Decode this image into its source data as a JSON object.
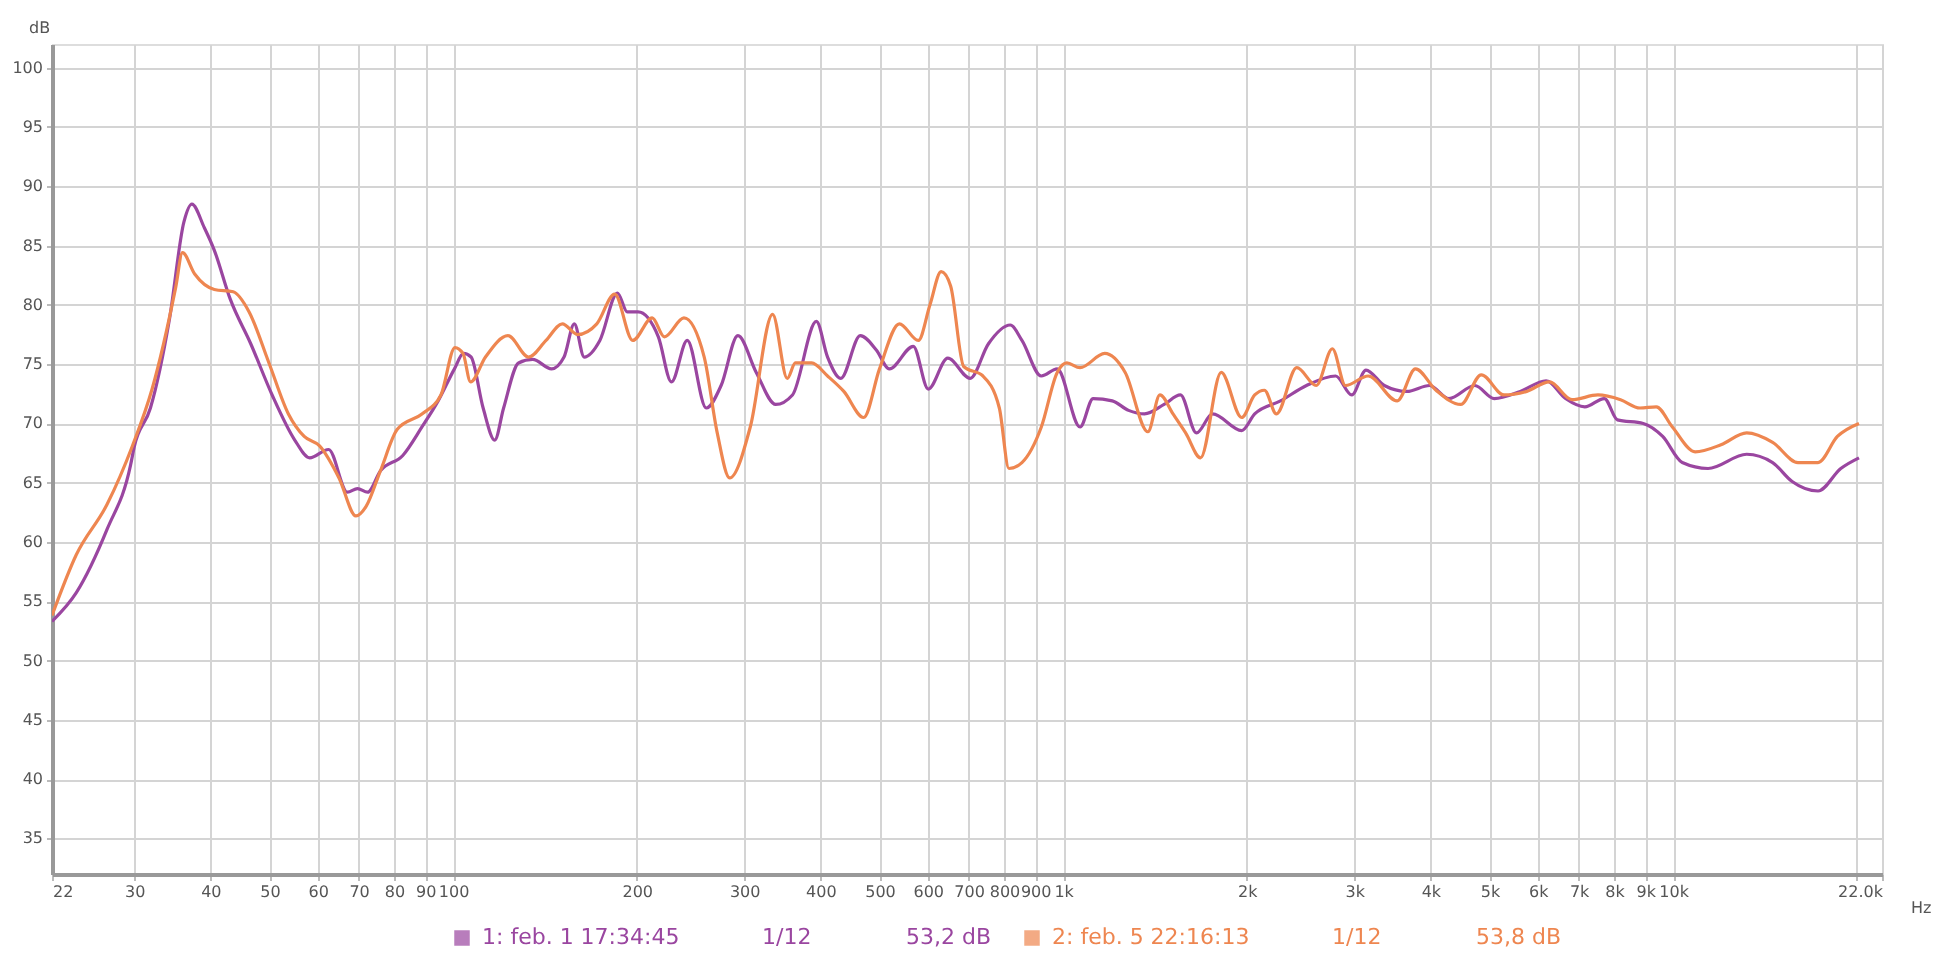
{
  "chart_data": {
    "type": "line",
    "ylabel": "dB",
    "xlabel": "Hz",
    "log": "x",
    "xlim": [
      22,
      22000
    ],
    "ylim": [
      32,
      102
    ],
    "xticks": [
      22,
      30,
      40,
      50,
      60,
      70,
      80,
      90,
      100,
      200,
      300,
      400,
      500,
      600,
      700,
      800,
      900,
      {
        "value": 1000,
        "label": "1k"
      },
      {
        "value": 2000,
        "label": "2k"
      },
      {
        "value": 3000,
        "label": "3k"
      },
      {
        "value": 4000,
        "label": "4k"
      },
      {
        "value": 5000,
        "label": "5k"
      },
      {
        "value": 6000,
        "label": "6k"
      },
      {
        "value": 7000,
        "label": "7k"
      },
      {
        "value": 8000,
        "label": "8k"
      },
      {
        "value": 9000,
        "label": "9k"
      },
      {
        "value": 10000,
        "label": "10k"
      },
      {
        "value": 20000,
        "label": null
      },
      {
        "value": 22000,
        "label": "22.0k"
      }
    ],
    "yticks": [
      35,
      40,
      45,
      50,
      55,
      60,
      65,
      70,
      75,
      80,
      85,
      90,
      95,
      100
    ],
    "grid": true,
    "legend": "bottom",
    "annotations": [
      "1/12",
      "53,2 dB",
      "1/12",
      "53,8 dB"
    ],
    "series": [
      {
        "name": "1: feb. 1 17:34:45",
        "color": "#9a46a0",
        "x": [
          22,
          24.1,
          27.1,
          29.6,
          30,
          31.9,
          34.3,
          36.2,
          37.3,
          39.1,
          40.6,
          43.1,
          46.6,
          50.5,
          55,
          58.2,
          62.5,
          67.1,
          69.7,
          72.4,
          76,
          82.7,
          88.9,
          94.5,
          100.5,
          104,
          107,
          112,
          117,
          121,
          128,
          135,
          145,
          152,
          158,
          164,
          174,
          186,
          193,
          201,
          217,
          228,
          242,
          260,
          275,
          293,
          314,
          338,
          360,
          394,
          411,
          432,
          465,
          494,
          519,
          568,
          601,
          647,
          704,
          754,
          819,
          856,
          921,
          978,
          1066,
          1120,
          1204,
          1280,
          1360,
          1464,
          1557,
          1654,
          1758,
          1962,
          2061,
          2272,
          2506,
          2798,
          2973,
          3137,
          3361,
          3660,
          3988,
          4291,
          4731,
          5091,
          5616,
          6192,
          6661,
          7165,
          7713,
          8103,
          8933,
          9614,
          10350,
          11410,
          13200,
          14560,
          15670,
          17280,
          18830,
          20170
        ],
        "values": [
          53.3,
          55.7,
          61.1,
          66.5,
          68,
          71.3,
          78.9,
          87,
          88.5,
          86.5,
          84.6,
          80.5,
          76.7,
          72.4,
          68.6,
          67.1,
          67.8,
          64.2,
          64.5,
          64.2,
          66,
          67.3,
          69.7,
          71.9,
          74.6,
          75.9,
          75.6,
          71.3,
          68.6,
          71.3,
          75.1,
          75.4,
          74.6,
          75.6,
          78.4,
          75.6,
          77,
          81,
          79.4,
          79.4,
          77.3,
          73.5,
          77,
          71.3,
          73.2,
          77.4,
          74.3,
          71.6,
          72.4,
          78.6,
          75.6,
          73.8,
          77.4,
          76.2,
          74.6,
          76.5,
          72.9,
          75.5,
          73.8,
          76.7,
          78.3,
          77,
          74,
          74.6,
          69.7,
          72.1,
          71.9,
          71.1,
          70.8,
          71.6,
          72.4,
          69.2,
          70.8,
          69.4,
          70.8,
          71.9,
          73.2,
          74,
          72.4,
          74.5,
          73.2,
          72.7,
          73.2,
          72.1,
          73.2,
          72.1,
          72.7,
          73.6,
          72.1,
          71.4,
          72.1,
          70.3,
          70,
          68.9,
          66.7,
          66.2,
          67.4,
          66.7,
          65.1,
          64.3,
          66.2,
          67.1
        ]
      },
      {
        "name": "2: feb. 5 22:16:13",
        "color": "#ee8650",
        "x": [
          22,
          24.1,
          27.1,
          29.8,
          32.1,
          35.1,
          36,
          37.7,
          40.6,
          43.6,
          46.3,
          49.9,
          53.7,
          57,
          60.4,
          65,
          69.3,
          72,
          76,
          81,
          88.9,
          95.5,
          100.7,
          103.8,
          106.8,
          113,
          123,
          133,
          142,
          151,
          160,
          172,
          184,
          197,
          212,
          222,
          239,
          258,
          271,
          284,
          307,
          334,
          353,
          364,
          387,
          411,
          437,
          471,
          500,
          539,
          579,
          605,
          631,
          654,
          687,
          739,
          786,
          815,
          856,
          921,
          978,
          1014,
          1066,
          1170,
          1264,
          1377,
          1441,
          1514,
          1588,
          1680,
          1816,
          1962,
          2061,
          2138,
          2237,
          2416,
          2600,
          2763,
          2903,
          3163,
          3530,
          3781,
          4086,
          4485,
          4848,
          5280,
          5754,
          6270,
          6825,
          7528,
          8200,
          8824,
          9385,
          9972,
          10870,
          11980,
          13200,
          14560,
          16020,
          17280,
          18590,
          20170
        ],
        "values": [
          53.8,
          58.9,
          63.2,
          68.1,
          72.9,
          81.5,
          84.4,
          82.6,
          81.3,
          81.1,
          79.4,
          75.1,
          70.8,
          68.9,
          68.1,
          65.4,
          62.2,
          63,
          66,
          69.5,
          70.8,
          72.4,
          76.4,
          75.9,
          73.5,
          75.6,
          77.4,
          75.6,
          77,
          78.4,
          77.5,
          78.4,
          80.9,
          77,
          78.9,
          77.3,
          78.9,
          75.6,
          69.2,
          65.4,
          69.7,
          79.2,
          73.8,
          75.1,
          75.1,
          74,
          72.7,
          70.5,
          74.6,
          78.4,
          77,
          80,
          82.8,
          81.6,
          74.8,
          74,
          71.3,
          66.2,
          66.7,
          69.7,
          74.3,
          75.1,
          74.7,
          75.9,
          74.3,
          69.3,
          72.4,
          70.8,
          69.2,
          67.1,
          74.3,
          70.5,
          72.4,
          72.8,
          70.8,
          74.7,
          73.2,
          76.3,
          73.2,
          74,
          71.9,
          74.6,
          72.8,
          71.6,
          74.1,
          72.4,
          72.7,
          73.5,
          72,
          72.4,
          72,
          71.3,
          71.4,
          69.7,
          67.6,
          68.2,
          69.2,
          68.4,
          66.7,
          66.7,
          68.9,
          70
        ]
      }
    ]
  }
}
